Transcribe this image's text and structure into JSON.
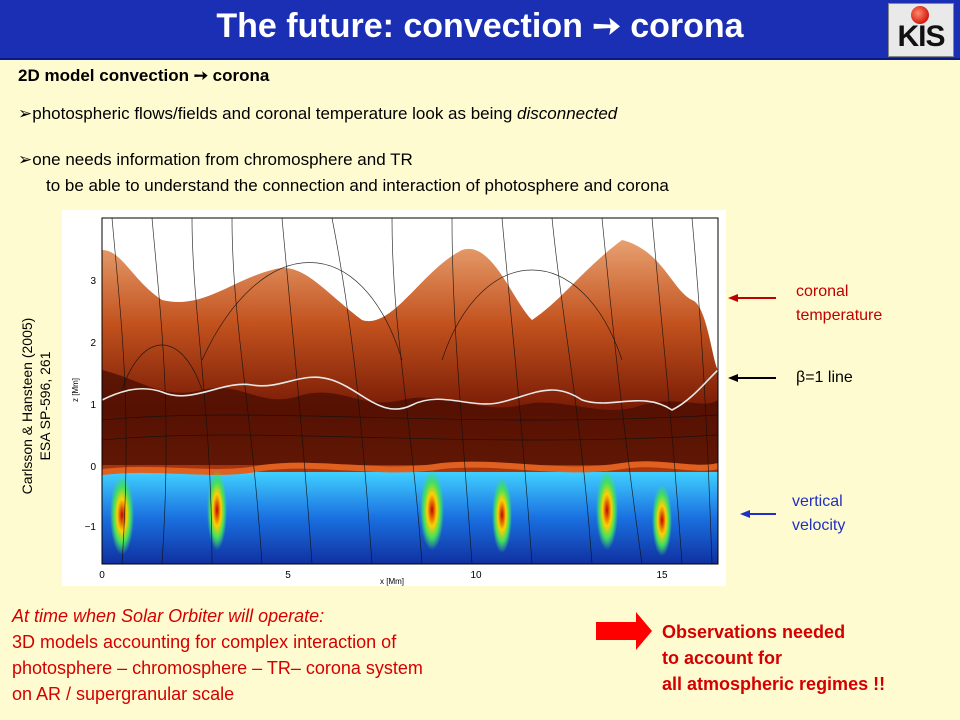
{
  "header": {
    "title": "The future: convection ➙ corona",
    "logo_text": "KIS"
  },
  "subtitle": "2D model convection ➙ corona",
  "bullets": [
    {
      "marker": "➢",
      "text": "photospheric flows/fields and coronal temperature look as being ",
      "emph": "disconnected"
    },
    {
      "marker": "➢",
      "text": "one needs information from chromosphere and TR",
      "line2": "to be able to understand the connection and interaction of photosphere and corona"
    }
  ],
  "figure": {
    "source_line1": "Carlsson & Hansteen (2005)",
    "source_line2": "ESA SP-596, 261",
    "x_axis_label": "x [Mm]",
    "y_axis_label": "z [Mm]",
    "x_ticks": [
      "0",
      "5",
      "10",
      "15"
    ],
    "y_ticks": [
      "−1",
      "0",
      "1",
      "2",
      "3"
    ]
  },
  "annotations": {
    "coronal_temperature": [
      "coronal",
      "temperature"
    ],
    "beta_line": "β=1 line",
    "vertical_velocity": [
      "vertical",
      "velocity"
    ]
  },
  "bottom_left": {
    "line1": "At time when Solar Orbiter will operate:",
    "line2": "3D models accounting for complex interaction of",
    "line3": "photosphere – chromosphere – TR– corona system",
    "line4": "on AR / supergranular scale"
  },
  "bottom_right": {
    "line1": "Observations needed",
    "line2": "to account for",
    "line3": "all atmospheric regimes !!"
  },
  "colors": {
    "title_bar": "#1a2fb4",
    "background": "#fffbd0",
    "accent_red": "#d40000",
    "annotation_red": "#c00000",
    "annotation_black": "#000000",
    "annotation_blue": "#2030c0"
  }
}
